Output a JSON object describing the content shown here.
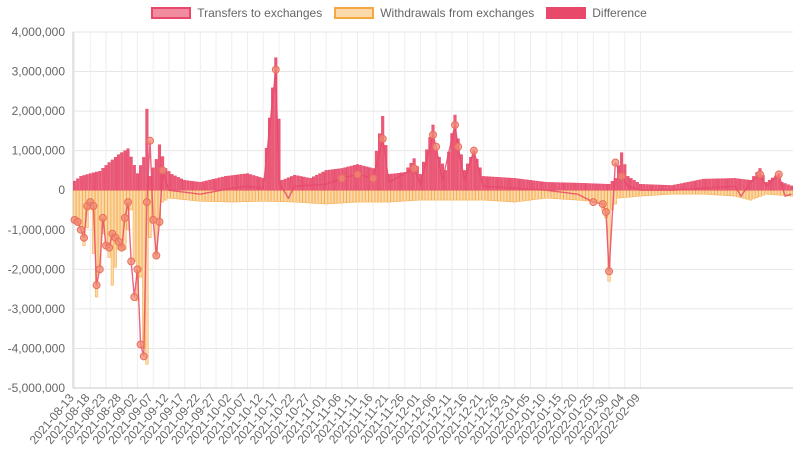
{
  "chart_data": {
    "type": "bar",
    "ylim": [
      -5000000,
      4000000
    ],
    "y_ticks": [
      4000000,
      3000000,
      2000000,
      1000000,
      0,
      -1000000,
      -2000000,
      -3000000,
      -4000000,
      -5000000
    ],
    "y_tick_labels": [
      "4,000,000",
      "3,000,000",
      "2,000,000",
      "1,000,000",
      "0",
      "-1,000,000",
      "-2,000,000",
      "-3,000,000",
      "-4,000,000",
      "-5,000,000"
    ],
    "x_tick_labels": [
      "2021-08-13",
      "2021-08-18",
      "2021-08-23",
      "2021-08-28",
      "2021-09-02",
      "2021-09-07",
      "2021-09-12",
      "2021-09-17",
      "2021-09-22",
      "2021-09-27",
      "2021-10-02",
      "2021-10-07",
      "2021-10-12",
      "2021-10-17",
      "2021-10-22",
      "2021-10-27",
      "2021-11-01",
      "2021-11-06",
      "2021-11-11",
      "2021-11-16",
      "2021-11-21",
      "2021-11-26",
      "2021-12-01",
      "2021-12-06",
      "2021-12-11",
      "2021-12-16",
      "2021-12-21",
      "2021-12-26",
      "2021-12-31",
      "2022-01-05",
      "2022-01-10",
      "2022-01-15",
      "2022-01-20",
      "2022-01-25",
      "2022-01-30",
      "2022-02-04",
      "2022-02-09"
    ],
    "grid": true,
    "legend_position": "top",
    "colors": {
      "transfers": "#e8496a",
      "transfers_fill": "#f08ba0",
      "withdrawals": "#f5a742",
      "withdrawals_fill": "#fcd9a8",
      "difference": "#e8496a",
      "difference_point": "#f08a78"
    },
    "series": [
      {
        "name": "Transfers to exchanges",
        "key": "transfers",
        "keypoints": [
          [
            0,
            230000
          ],
          [
            2,
            350000
          ],
          [
            5,
            420000
          ],
          [
            8,
            480000
          ],
          [
            11,
            700000
          ],
          [
            14,
            900000
          ],
          [
            17,
            1050000
          ],
          [
            20,
            420000
          ],
          [
            22,
            830000
          ],
          [
            23,
            2050000
          ],
          [
            24,
            350000
          ],
          [
            26,
            780000
          ],
          [
            27,
            1150000
          ],
          [
            29,
            550000
          ],
          [
            31,
            400000
          ],
          [
            35,
            250000
          ],
          [
            40,
            200000
          ],
          [
            48,
            350000
          ],
          [
            55,
            420000
          ],
          [
            60,
            300000
          ],
          [
            64,
            3350000
          ],
          [
            66,
            250000
          ],
          [
            70,
            380000
          ],
          [
            75,
            300000
          ],
          [
            80,
            500000
          ],
          [
            85,
            550000
          ],
          [
            90,
            650000
          ],
          [
            95,
            550000
          ],
          [
            98,
            1870000
          ],
          [
            100,
            400000
          ],
          [
            105,
            450000
          ],
          [
            108,
            800000
          ],
          [
            110,
            400000
          ],
          [
            114,
            1650000
          ],
          [
            115,
            1000000
          ],
          [
            118,
            500000
          ],
          [
            121,
            1900000
          ],
          [
            122,
            1300000
          ],
          [
            124,
            500000
          ],
          [
            127,
            1000000
          ],
          [
            130,
            350000
          ],
          [
            140,
            300000
          ],
          [
            150,
            200000
          ],
          [
            160,
            180000
          ],
          [
            170,
            150000
          ],
          [
            172,
            300000
          ],
          [
            174,
            950000
          ],
          [
            176,
            350000
          ],
          [
            180,
            150000
          ],
          [
            190,
            120000
          ],
          [
            200,
            280000
          ],
          [
            210,
            300000
          ],
          [
            215,
            250000
          ],
          [
            218,
            550000
          ],
          [
            220,
            200000
          ],
          [
            224,
            420000
          ],
          [
            225,
            200000
          ],
          [
            228,
            110000
          ]
        ]
      },
      {
        "name": "Withdrawals from exchanges",
        "key": "withdrawals",
        "keypoints": [
          [
            0,
            -780000
          ],
          [
            2,
            -1000000
          ],
          [
            3,
            -1400000
          ],
          [
            5,
            -500000
          ],
          [
            7,
            -2700000
          ],
          [
            9,
            -1100000
          ],
          [
            11,
            -1700000
          ],
          [
            12,
            -2400000
          ],
          [
            14,
            -1500000
          ],
          [
            16,
            -1500000
          ],
          [
            18,
            -500000
          ],
          [
            19,
            -1800000
          ],
          [
            20,
            -2800000
          ],
          [
            21,
            -2200000
          ],
          [
            22,
            -4000000
          ],
          [
            23,
            -4400000
          ],
          [
            24,
            -1200000
          ],
          [
            25,
            -800000
          ],
          [
            26,
            -1700000
          ],
          [
            27,
            -900000
          ],
          [
            28,
            -300000
          ],
          [
            30,
            -200000
          ],
          [
            40,
            -280000
          ],
          [
            50,
            -300000
          ],
          [
            60,
            -280000
          ],
          [
            70,
            -300000
          ],
          [
            80,
            -350000
          ],
          [
            90,
            -300000
          ],
          [
            100,
            -300000
          ],
          [
            110,
            -250000
          ],
          [
            120,
            -250000
          ],
          [
            130,
            -250000
          ],
          [
            140,
            -300000
          ],
          [
            150,
            -200000
          ],
          [
            160,
            -250000
          ],
          [
            167,
            -300000
          ],
          [
            169,
            -700000
          ],
          [
            170,
            -2300000
          ],
          [
            171,
            -500000
          ],
          [
            173,
            -200000
          ],
          [
            180,
            -150000
          ],
          [
            190,
            -100000
          ],
          [
            200,
            -100000
          ],
          [
            210,
            -150000
          ],
          [
            215,
            -250000
          ],
          [
            220,
            -100000
          ],
          [
            228,
            -150000
          ]
        ]
      },
      {
        "name": "Difference",
        "key": "difference",
        "keypoints": [
          [
            0,
            -750000
          ],
          [
            1,
            -800000
          ],
          [
            2,
            -1000000
          ],
          [
            3,
            -1200000
          ],
          [
            4,
            -400000
          ],
          [
            5,
            -300000
          ],
          [
            6,
            -400000
          ],
          [
            7,
            -2400000
          ],
          [
            8,
            -2000000
          ],
          [
            9,
            -700000
          ],
          [
            10,
            -1400000
          ],
          [
            11,
            -1450000
          ],
          [
            12,
            -1100000
          ],
          [
            13,
            -1200000
          ],
          [
            14,
            -1300000
          ],
          [
            15,
            -1450000
          ],
          [
            16,
            -700000
          ],
          [
            17,
            -300000
          ],
          [
            18,
            -1800000
          ],
          [
            19,
            -2700000
          ],
          [
            20,
            -2000000
          ],
          [
            21,
            -3900000
          ],
          [
            22,
            -4200000
          ],
          [
            23,
            -300000
          ],
          [
            24,
            1250000
          ],
          [
            25,
            -750000
          ],
          [
            26,
            -1650000
          ],
          [
            27,
            -800000
          ],
          [
            28,
            500000
          ],
          [
            29,
            200000
          ],
          [
            30,
            0
          ],
          [
            35,
            -50000
          ],
          [
            40,
            -100000
          ],
          [
            50,
            50000
          ],
          [
            55,
            100000
          ],
          [
            60,
            50000
          ],
          [
            64,
            3050000
          ],
          [
            65,
            200000
          ],
          [
            68,
            -200000
          ],
          [
            70,
            100000
          ],
          [
            80,
            150000
          ],
          [
            85,
            300000
          ],
          [
            90,
            400000
          ],
          [
            95,
            300000
          ],
          [
            98,
            1300000
          ],
          [
            100,
            200000
          ],
          [
            108,
            550000
          ],
          [
            110,
            150000
          ],
          [
            114,
            1400000
          ],
          [
            115,
            1100000
          ],
          [
            117,
            250000
          ],
          [
            121,
            1650000
          ],
          [
            122,
            1100000
          ],
          [
            124,
            250000
          ],
          [
            127,
            1000000
          ],
          [
            130,
            100000
          ],
          [
            140,
            50000
          ],
          [
            150,
            0
          ],
          [
            160,
            -100000
          ],
          [
            165,
            -300000
          ],
          [
            168,
            -350000
          ],
          [
            169,
            -550000
          ],
          [
            170,
            -2050000
          ],
          [
            172,
            700000
          ],
          [
            174,
            350000
          ],
          [
            176,
            100000
          ],
          [
            180,
            0
          ],
          [
            190,
            0
          ],
          [
            200,
            50000
          ],
          [
            210,
            100000
          ],
          [
            212,
            -150000
          ],
          [
            215,
            200000
          ],
          [
            218,
            400000
          ],
          [
            220,
            100000
          ],
          [
            224,
            400000
          ],
          [
            226,
            -150000
          ],
          [
            228,
            -100000
          ]
        ]
      }
    ],
    "n_days": 229
  }
}
